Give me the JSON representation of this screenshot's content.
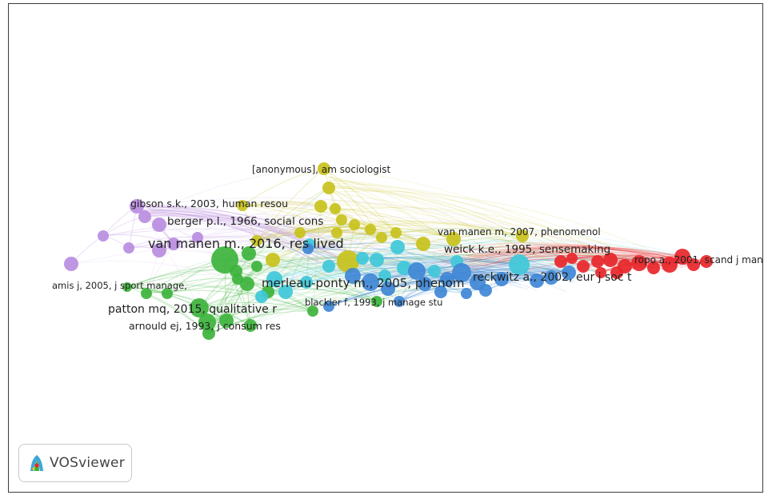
{
  "app": {
    "logo_text": "VOSviewer",
    "logo_icon": "vosviewer-icon"
  },
  "clusters": {
    "red": "#e8262a",
    "green": "#3db33c",
    "blue": "#3f87d6",
    "yellow": "#c8c21c",
    "purple": "#b98de0",
    "cyan": "#3fc8d9"
  },
  "labels": [
    {
      "id": "anon",
      "text": "[anonymous], am sociologist",
      "cluster": "yellow"
    },
    {
      "id": "gibson",
      "text": "gibson s.k., 2003, human resou",
      "cluster": "purple"
    },
    {
      "id": "berger",
      "text": "berger p.l., 1966, social cons",
      "cluster": "purple"
    },
    {
      "id": "vanmanen2016",
      "text": "van manen m., 2016, res lived",
      "cluster": "purple"
    },
    {
      "id": "vanmanen2007",
      "text": "van manen m, 2007, phenomenol",
      "cluster": "yellow"
    },
    {
      "id": "weick",
      "text": "weick k.e., 1995, sensemaking",
      "cluster": "blue"
    },
    {
      "id": "ropo",
      "text": "ropo a., 2001, scand j man",
      "cluster": "red"
    },
    {
      "id": "amis",
      "text": "amis j, 2005, j sport manage,",
      "cluster": "green"
    },
    {
      "id": "merleau",
      "text": "merleau-ponty m., 2005, phenom",
      "cluster": "cyan"
    },
    {
      "id": "reckwitz",
      "text": "reckwitz a., 2002, eur j soc t",
      "cluster": "blue"
    },
    {
      "id": "blackler",
      "text": "blackler f, 1993, j manage stu",
      "cluster": "blue"
    },
    {
      "id": "patton",
      "text": "patton mq, 2015, qualitative r",
      "cluster": "green"
    },
    {
      "id": "arnould",
      "text": "arnould ej, 1993, j consum res",
      "cluster": "green"
    }
  ]
}
